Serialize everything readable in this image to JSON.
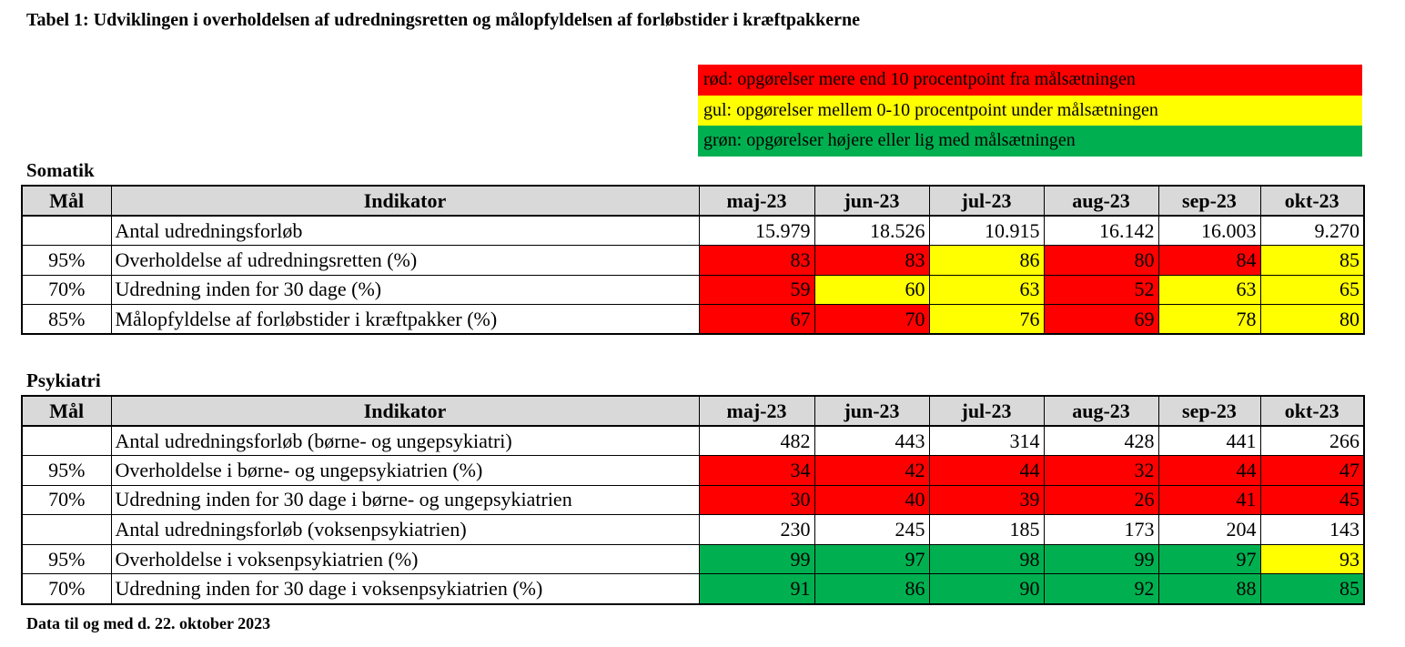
{
  "title": "Tabel 1: Udviklingen i overholdelsen af udredningsretten og målopfyldelsen af forløbstider i kræftpakkerne",
  "colors": {
    "red": "#ff0000",
    "yellow": "#ffff00",
    "green": "#00b050",
    "header_bg": "#d9d9d9"
  },
  "legend": [
    {
      "color": "red",
      "text": "rød: opgørelser mere end 10 procentpoint fra målsætningen"
    },
    {
      "color": "yellow",
      "text": "gul: opgørelser mellem 0-10 procentpoint under målsætningen"
    },
    {
      "color": "green",
      "text": "grøn: opgørelser højere eller lig med målsætningen"
    }
  ],
  "tables": [
    {
      "section_title": "Somatik",
      "header": {
        "goal": "Mål",
        "indicator": "Indikator",
        "months": [
          "maj-23",
          "jun-23",
          "jul-23",
          "aug-23",
          "sep-23",
          "okt-23"
        ]
      },
      "rows": [
        {
          "goal": "",
          "indicator": "Antal udredningsforløb",
          "values": [
            "15.979",
            "18.526",
            "10.915",
            "16.142",
            "16.003",
            "9.270"
          ],
          "colors": [
            "",
            "",
            "",
            "",
            "",
            ""
          ]
        },
        {
          "goal": "95%",
          "indicator": "Overholdelse af udredningsretten (%)",
          "values": [
            "83",
            "83",
            "86",
            "80",
            "84",
            "85"
          ],
          "colors": [
            "red",
            "red",
            "yellow",
            "red",
            "red",
            "yellow"
          ]
        },
        {
          "goal": "70%",
          "indicator": "Udredning inden for 30 dage (%)",
          "values": [
            "59",
            "60",
            "63",
            "52",
            "63",
            "65"
          ],
          "colors": [
            "red",
            "yellow",
            "yellow",
            "red",
            "yellow",
            "yellow"
          ]
        },
        {
          "goal": "85%",
          "indicator": "Målopfyldelse af forløbstider i kræftpakker (%)",
          "values": [
            "67",
            "70",
            "76",
            "69",
            "78",
            "80"
          ],
          "colors": [
            "red",
            "red",
            "yellow",
            "red",
            "yellow",
            "yellow"
          ]
        }
      ]
    },
    {
      "section_title": "Psykiatri",
      "header": {
        "goal": "Mål",
        "indicator": "Indikator",
        "months": [
          "maj-23",
          "jun-23",
          "jul-23",
          "aug-23",
          "sep-23",
          "okt-23"
        ]
      },
      "rows": [
        {
          "goal": "",
          "indicator": "Antal udredningsforløb (børne- og ungepsykiatri)",
          "values": [
            "482",
            "443",
            "314",
            "428",
            "441",
            "266"
          ],
          "colors": [
            "",
            "",
            "",
            "",
            "",
            ""
          ]
        },
        {
          "goal": "95%",
          "indicator": "Overholdelse i børne- og ungepsykiatrien (%)",
          "values": [
            "34",
            "42",
            "44",
            "32",
            "44",
            "47"
          ],
          "colors": [
            "red",
            "red",
            "red",
            "red",
            "red",
            "red"
          ]
        },
        {
          "goal": "70%",
          "indicator": "Udredning inden for 30 dage i børne- og ungepsykiatrien",
          "values": [
            "30",
            "40",
            "39",
            "26",
            "41",
            "45"
          ],
          "colors": [
            "red",
            "red",
            "red",
            "red",
            "red",
            "red"
          ]
        },
        {
          "goal": "",
          "indicator": "Antal udredningsforløb (voksenpsykiatrien)",
          "values": [
            "230",
            "245",
            "185",
            "173",
            "204",
            "143"
          ],
          "colors": [
            "",
            "",
            "",
            "",
            "",
            ""
          ]
        },
        {
          "goal": "95%",
          "indicator": "Overholdelse i voksenpsykiatrien (%)",
          "values": [
            "99",
            "97",
            "98",
            "99",
            "97",
            "93"
          ],
          "colors": [
            "green",
            "green",
            "green",
            "green",
            "green",
            "yellow"
          ]
        },
        {
          "goal": "70%",
          "indicator": "Udredning inden for 30 dage i voksenpsykiatrien (%)",
          "values": [
            "91",
            "86",
            "90",
            "92",
            "88",
            "85"
          ],
          "colors": [
            "green",
            "green",
            "green",
            "green",
            "green",
            "green"
          ]
        }
      ]
    }
  ],
  "footer": "Data til og med d. 22. oktober 2023"
}
